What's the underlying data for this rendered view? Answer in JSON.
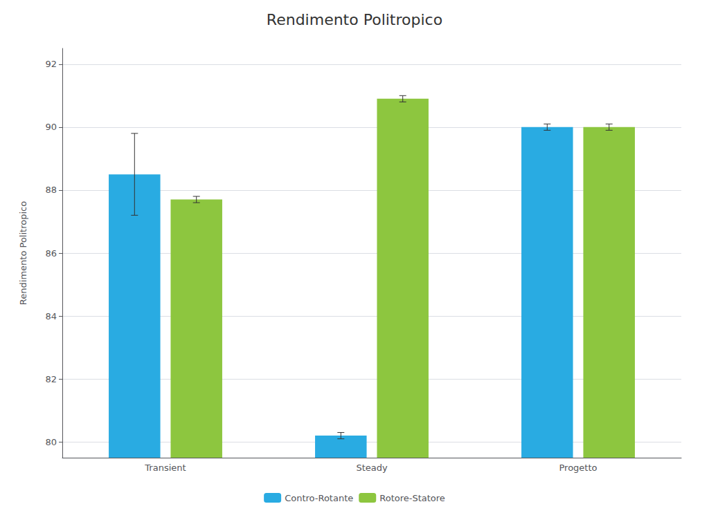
{
  "chart_data": {
    "type": "bar",
    "title": "Rendimento Politropico",
    "ylabel": "Rendimento Politropico",
    "categories": [
      "Transient",
      "Steady",
      "Progetto"
    ],
    "series": [
      {
        "name": "Contro-Rotante",
        "color": "#29ABE2",
        "values": [
          88.5,
          80.2,
          90.0
        ],
        "errors": [
          1.3,
          0.1,
          0.1
        ]
      },
      {
        "name": "Rotore-Statore",
        "color": "#8DC63F",
        "values": [
          87.7,
          90.9,
          90.0
        ],
        "errors": [
          0.1,
          0.1,
          0.1
        ]
      }
    ],
    "ylim": [
      79.5,
      92.5
    ],
    "yticks": [
      80,
      82,
      84,
      86,
      88,
      90,
      92
    ],
    "grid": true,
    "legend": "bottom"
  }
}
